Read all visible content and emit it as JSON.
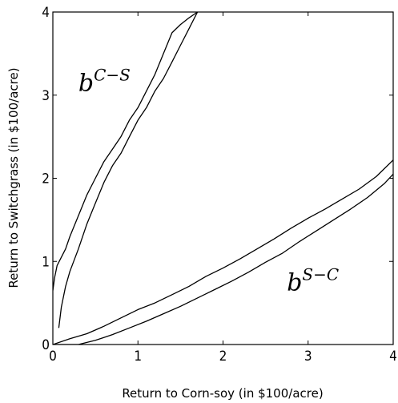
{
  "chart_data": {
    "type": "line",
    "title": "",
    "xlabel": "Return to Corn-soy (in $100/acre)",
    "ylabel": "Return to Switchgrass (in $100/acre)",
    "xlim": [
      0,
      4
    ],
    "ylim": [
      0,
      4
    ],
    "x_ticks": [
      0,
      1,
      2,
      3,
      4
    ],
    "y_ticks": [
      0,
      1,
      2,
      3,
      4
    ],
    "x_tick_labels": [
      "0",
      "1",
      "2",
      "3",
      "4"
    ],
    "y_tick_labels": [
      "0",
      "1",
      "2",
      "3",
      "4"
    ],
    "grid": false,
    "legend": "none",
    "line_color": "#000000",
    "annotations": [
      {
        "base": "b",
        "superscript": "C−S",
        "x": 0.3,
        "y": 3.05
      },
      {
        "base": "b",
        "superscript": "S−C",
        "x": 2.75,
        "y": 0.65
      }
    ],
    "series": [
      {
        "x": [
          0.0,
          0.02,
          0.05,
          0.1,
          0.15,
          0.2,
          0.3,
          0.4,
          0.5,
          0.6,
          0.7,
          0.8,
          0.9,
          1.0,
          1.1,
          1.2,
          1.3,
          1.4,
          1.5,
          1.6,
          1.7
        ],
        "y": [
          0.65,
          0.8,
          0.95,
          1.05,
          1.15,
          1.3,
          1.55,
          1.8,
          2.0,
          2.2,
          2.35,
          2.5,
          2.7,
          2.85,
          3.05,
          3.25,
          3.5,
          3.75,
          3.85,
          3.93,
          4.0
        ]
      },
      {
        "x": [
          0.07,
          0.1,
          0.15,
          0.2,
          0.3,
          0.4,
          0.5,
          0.6,
          0.7,
          0.8,
          0.9,
          1.0,
          1.1,
          1.2,
          1.3,
          1.4,
          1.5,
          1.6,
          1.7
        ],
        "y": [
          0.2,
          0.45,
          0.7,
          0.88,
          1.15,
          1.45,
          1.7,
          1.95,
          2.15,
          2.3,
          2.5,
          2.7,
          2.85,
          3.05,
          3.2,
          3.4,
          3.6,
          3.8,
          4.0
        ]
      },
      {
        "x": [
          0.0,
          0.2,
          0.4,
          0.6,
          0.8,
          1.0,
          1.2,
          1.4,
          1.6,
          1.8,
          2.0,
          2.2,
          2.4,
          2.6,
          2.8,
          3.0,
          3.2,
          3.4,
          3.6,
          3.8,
          4.0
        ],
        "y": [
          0.0,
          0.07,
          0.13,
          0.22,
          0.32,
          0.42,
          0.5,
          0.6,
          0.7,
          0.82,
          0.92,
          1.03,
          1.15,
          1.27,
          1.4,
          1.52,
          1.63,
          1.75,
          1.87,
          2.02,
          2.22
        ]
      },
      {
        "x": [
          0.0,
          0.3,
          0.5,
          0.7,
          0.9,
          1.1,
          1.3,
          1.5,
          1.7,
          1.9,
          2.1,
          2.3,
          2.5,
          2.7,
          2.9,
          3.1,
          3.3,
          3.5,
          3.7,
          3.9,
          4.0
        ],
        "y": [
          0.0,
          0.0,
          0.05,
          0.12,
          0.2,
          0.28,
          0.37,
          0.46,
          0.56,
          0.66,
          0.76,
          0.87,
          0.99,
          1.1,
          1.24,
          1.37,
          1.5,
          1.63,
          1.77,
          1.94,
          2.05
        ]
      }
    ]
  }
}
